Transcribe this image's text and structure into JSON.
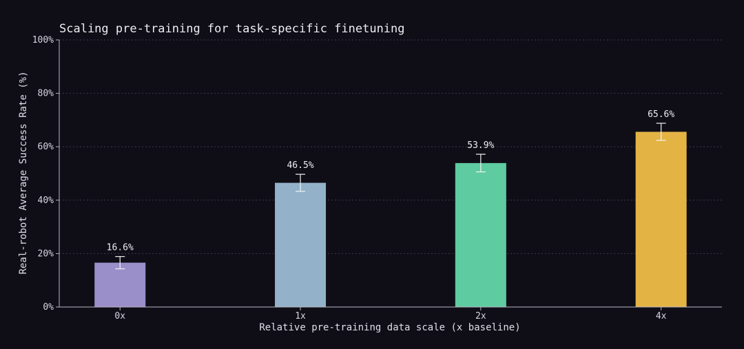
{
  "chart_data": {
    "type": "bar",
    "title": "Scaling pre-training for task-specific finetuning",
    "xlabel": "Relative pre-training data scale (x baseline)",
    "ylabel": "Real-robot Average Success Rate (%)",
    "ylim": [
      0,
      100
    ],
    "yticks": [
      0,
      20,
      40,
      60,
      80,
      100
    ],
    "ytick_suffix": "%",
    "grid": true,
    "categories": [
      "0x",
      "1x",
      "2x",
      "4x"
    ],
    "values": [
      16.6,
      46.5,
      53.9,
      65.6
    ],
    "value_labels": [
      "16.6%",
      "46.5%",
      "53.9%",
      "65.6%"
    ],
    "error_low": [
      14.3,
      43.3,
      50.6,
      62.4
    ],
    "error_high": [
      18.9,
      49.7,
      57.2,
      68.8
    ],
    "colors": [
      "#9b8fc9",
      "#93b2c9",
      "#5ecba0",
      "#e3b444"
    ]
  }
}
